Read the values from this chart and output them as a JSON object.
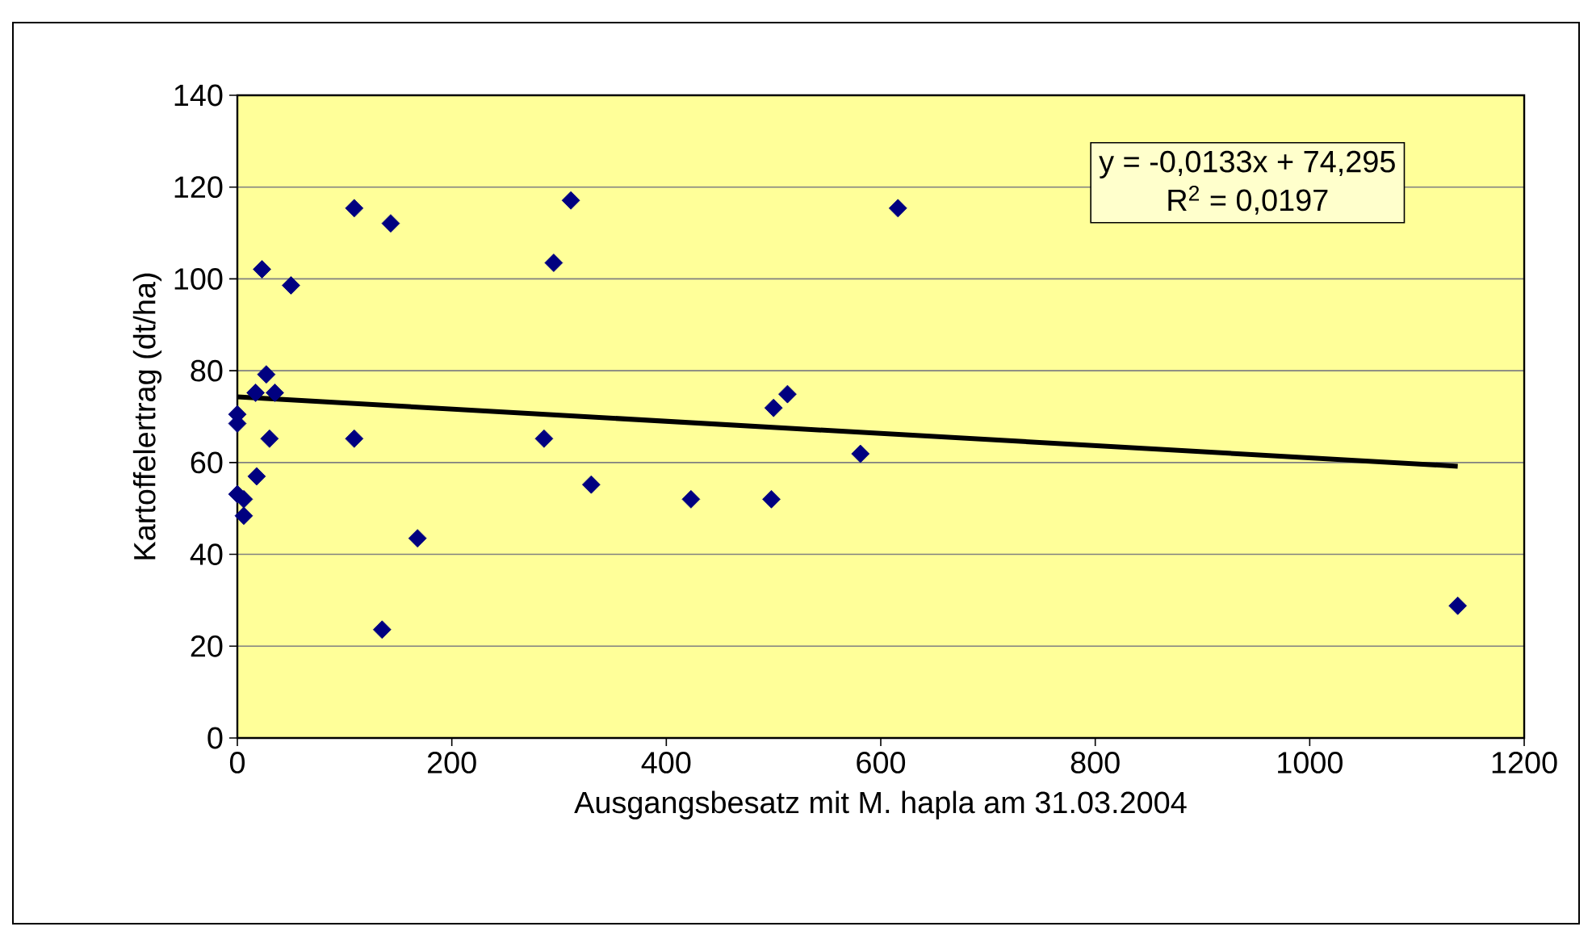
{
  "chart_data": {
    "type": "scatter",
    "xlabel": "Ausgangsbesatz mit M. hapla am 31.03.2004",
    "ylabel": "Kartoffelertrag (dt/ha)",
    "xlim": [
      0,
      1200
    ],
    "xticks": [
      0,
      200,
      400,
      600,
      800,
      1000,
      1200
    ],
    "ylim": [
      0,
      140
    ],
    "yticks": [
      0,
      20,
      40,
      60,
      80,
      100,
      120,
      140
    ],
    "grid": "y",
    "series": [
      {
        "marker": "diamond",
        "color": "#000080",
        "x": [
          0,
          0,
          0,
          6,
          6,
          18,
          30,
          23,
          50,
          27,
          17,
          35,
          109,
          143,
          109,
          168,
          135,
          286,
          295,
          311,
          330,
          423,
          498,
          500,
          513,
          581,
          616,
          1138
        ],
        "values": [
          70.5,
          68.5,
          53.1,
          52.0,
          48.4,
          57.0,
          65.2,
          102.1,
          98.6,
          79.2,
          75.2,
          75.2,
          115.4,
          112.1,
          65.2,
          43.5,
          23.6,
          65.2,
          103.5,
          117.1,
          55.2,
          52.0,
          52.0,
          71.9,
          74.9,
          61.9,
          115.4,
          28.8
        ]
      },
      {
        "type": "line",
        "color": "#000000",
        "x": [
          0,
          1138
        ],
        "values": [
          74.3,
          59.2
        ]
      }
    ],
    "annotations": [
      "y = -0,0133x + 74,295",
      "R$^{2}$ = 0,0197"
    ]
  }
}
